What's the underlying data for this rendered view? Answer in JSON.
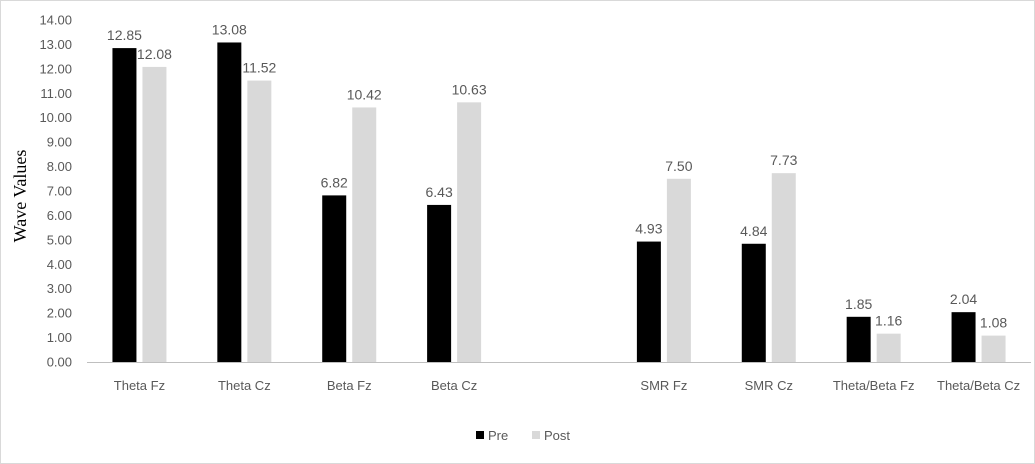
{
  "chart_data": {
    "type": "bar",
    "title": "",
    "xlabel": "",
    "ylabel": "Wave Values",
    "ylim": [
      0,
      14
    ],
    "ytick_step": 1,
    "ytick_labels": [
      "0.00",
      "1.00",
      "2.00",
      "3.00",
      "4.00",
      "5.00",
      "6.00",
      "7.00",
      "8.00",
      "9.00",
      "10.00",
      "11.00",
      "12.00",
      "13.00",
      "14.00"
    ],
    "categories": [
      "Theta Fz",
      "Theta Cz",
      "Beta Fz",
      "Beta Cz",
      "",
      "SMR Fz",
      "SMR Cz",
      "Theta/Beta Fz",
      "Theta/Beta Cz"
    ],
    "series": [
      {
        "name": "Pre",
        "color": "#000000",
        "values": [
          12.85,
          13.08,
          6.82,
          6.43,
          null,
          4.93,
          4.84,
          1.85,
          2.04
        ],
        "labels": [
          "12.85",
          "13.08",
          "6.82",
          "6.43",
          "",
          "4.93",
          "4.84",
          "1.85",
          "2.04"
        ]
      },
      {
        "name": "Post",
        "color": "#d9d9d9",
        "values": [
          12.08,
          11.52,
          10.42,
          10.63,
          null,
          7.5,
          7.73,
          1.16,
          1.08
        ],
        "labels": [
          "12.08",
          "11.52",
          "10.42",
          "10.63",
          "",
          "7.50",
          "7.73",
          "1.16",
          "1.08"
        ]
      }
    ],
    "grid": false,
    "legend_position": "bottom-center"
  }
}
